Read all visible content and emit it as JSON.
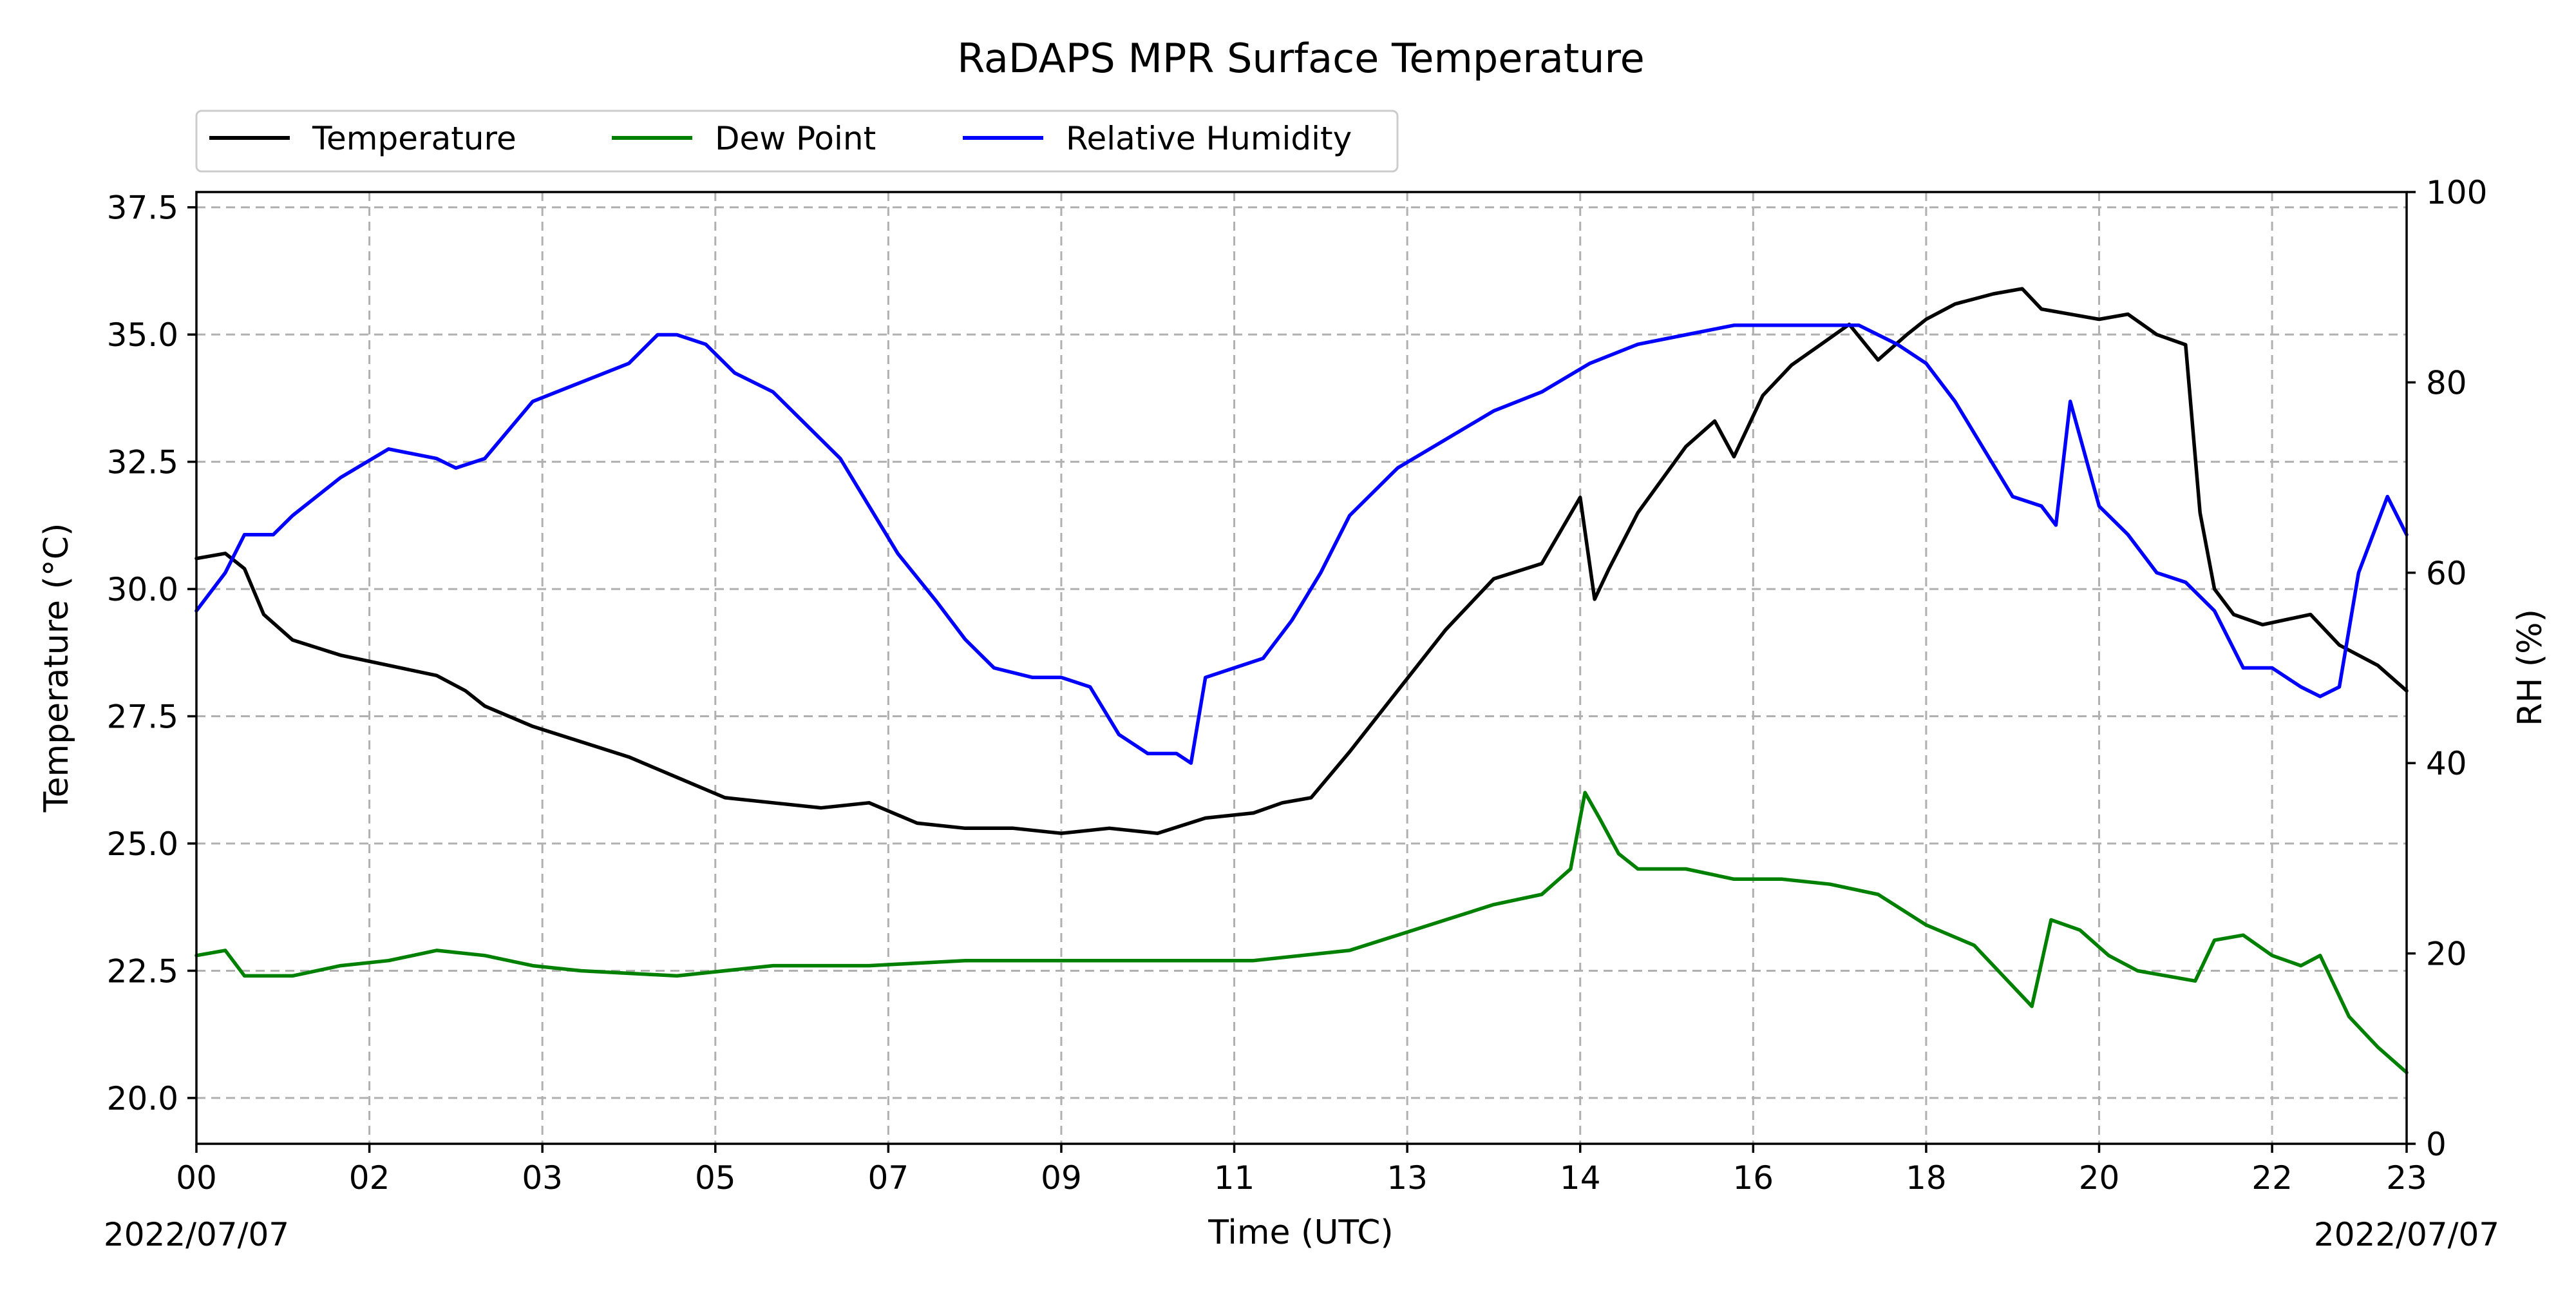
{
  "chart_data": {
    "type": "line",
    "title": "RaDAPS MPR Surface Temperature",
    "xlabel": "Time (UTC)",
    "ylabel": "Temperature ( $^\\circ$C)",
    "ylabel_display": "Temperature (°C)",
    "y2label": "RH (%)",
    "date_left": "2022/07/07",
    "date_right": "2022/07/07",
    "xlim": [
      0,
      23
    ],
    "ylim": [
      19.1,
      37.8
    ],
    "y2lim": [
      0,
      100
    ],
    "grid": true,
    "legend_position": "top-left, above plot",
    "x_ticks": [
      {
        "value": 0,
        "label": "00"
      },
      {
        "value": 1.8,
        "label": "02"
      },
      {
        "value": 3.6,
        "label": "03"
      },
      {
        "value": 5.4,
        "label": "05"
      },
      {
        "value": 7.2,
        "label": "07"
      },
      {
        "value": 9.0,
        "label": "09"
      },
      {
        "value": 10.8,
        "label": "11"
      },
      {
        "value": 12.6,
        "label": "13"
      },
      {
        "value": 14.4,
        "label": "14"
      },
      {
        "value": 16.2,
        "label": "16"
      },
      {
        "value": 18.0,
        "label": "18"
      },
      {
        "value": 19.8,
        "label": "20"
      },
      {
        "value": 21.6,
        "label": "22"
      },
      {
        "value": 23.0,
        "label": "23"
      }
    ],
    "y_ticks": [
      {
        "value": 20.0,
        "label": "20.0"
      },
      {
        "value": 22.5,
        "label": "22.5"
      },
      {
        "value": 25.0,
        "label": "25.0"
      },
      {
        "value": 27.5,
        "label": "27.5"
      },
      {
        "value": 30.0,
        "label": "30.0"
      },
      {
        "value": 32.5,
        "label": "32.5"
      },
      {
        "value": 35.0,
        "label": "35.0"
      },
      {
        "value": 37.5,
        "label": "37.5"
      }
    ],
    "y2_ticks": [
      {
        "value": 0,
        "label": "0"
      },
      {
        "value": 20,
        "label": "20"
      },
      {
        "value": 40,
        "label": "40"
      },
      {
        "value": 60,
        "label": "60"
      },
      {
        "value": 80,
        "label": "80"
      },
      {
        "value": 100,
        "label": "100"
      }
    ],
    "series": [
      {
        "name": "Temperature",
        "color": "#000000",
        "axis": "left",
        "x": [
          0,
          0.3,
          0.5,
          0.7,
          1.0,
          1.5,
          2.0,
          2.5,
          2.8,
          3.0,
          3.5,
          4.0,
          4.5,
          5.0,
          5.5,
          6.0,
          6.5,
          7.0,
          7.5,
          8.0,
          8.5,
          9.0,
          9.5,
          10.0,
          10.5,
          11.0,
          11.3,
          11.6,
          12.0,
          12.5,
          13.0,
          13.5,
          14.0,
          14.4,
          14.55,
          14.7,
          15.0,
          15.5,
          15.8,
          16.0,
          16.3,
          16.6,
          16.9,
          17.2,
          17.5,
          17.8,
          18.0,
          18.3,
          18.7,
          19.0,
          19.2,
          19.5,
          19.8,
          20.1,
          20.4,
          20.7,
          20.85,
          21.0,
          21.2,
          21.5,
          22.0,
          22.3,
          22.7,
          23.0
        ],
        "values": [
          30.6,
          30.7,
          30.4,
          29.5,
          29.0,
          28.7,
          28.5,
          28.3,
          28.0,
          27.7,
          27.3,
          27.0,
          26.7,
          26.3,
          25.9,
          25.8,
          25.7,
          25.8,
          25.4,
          25.3,
          25.3,
          25.2,
          25.3,
          25.2,
          25.5,
          25.6,
          25.8,
          25.9,
          26.8,
          28.0,
          29.2,
          30.2,
          30.5,
          31.8,
          29.8,
          30.4,
          31.5,
          32.8,
          33.3,
          32.6,
          33.8,
          34.4,
          34.8,
          35.2,
          34.5,
          35.0,
          35.3,
          35.6,
          35.8,
          35.9,
          35.5,
          35.4,
          35.3,
          35.4,
          35.0,
          34.8,
          31.5,
          30.0,
          29.5,
          29.3,
          29.5,
          28.9,
          28.5,
          28.0
        ]
      },
      {
        "name": "Dew Point",
        "color": "#008000",
        "axis": "left",
        "x": [
          0,
          0.3,
          0.5,
          1.0,
          1.5,
          2.0,
          2.5,
          3.0,
          3.5,
          4.0,
          5.0,
          6.0,
          7.0,
          8.0,
          9.0,
          10.0,
          11.0,
          12.0,
          12.5,
          13.0,
          13.5,
          14.0,
          14.3,
          14.45,
          14.6,
          14.8,
          15.0,
          15.5,
          16.0,
          16.5,
          17.0,
          17.5,
          18.0,
          18.5,
          18.8,
          19.1,
          19.3,
          19.6,
          19.9,
          20.2,
          20.5,
          20.8,
          21.0,
          21.3,
          21.6,
          21.9,
          22.1,
          22.4,
          22.7,
          23.0
        ],
        "values": [
          22.8,
          22.9,
          22.4,
          22.4,
          22.6,
          22.7,
          22.9,
          22.8,
          22.6,
          22.5,
          22.4,
          22.6,
          22.6,
          22.7,
          22.7,
          22.7,
          22.7,
          22.9,
          23.2,
          23.5,
          23.8,
          24.0,
          24.5,
          26.0,
          25.5,
          24.8,
          24.5,
          24.5,
          24.3,
          24.3,
          24.2,
          24.0,
          23.4,
          23.0,
          22.4,
          21.8,
          23.5,
          23.3,
          22.8,
          22.5,
          22.4,
          22.3,
          23.1,
          23.2,
          22.8,
          22.6,
          22.8,
          21.6,
          21.0,
          20.5
        ]
      },
      {
        "name": "Relative Humidity",
        "color": "#0000ff",
        "axis": "right",
        "x": [
          0,
          0.3,
          0.5,
          0.8,
          1.0,
          1.5,
          2.0,
          2.5,
          2.7,
          3.0,
          3.5,
          4.0,
          4.5,
          4.8,
          5.0,
          5.3,
          5.6,
          6.0,
          6.3,
          6.7,
          7.0,
          7.3,
          7.7,
          8.0,
          8.3,
          8.7,
          9.0,
          9.3,
          9.6,
          9.9,
          10.2,
          10.35,
          10.5,
          10.8,
          11.1,
          11.4,
          11.7,
          12.0,
          12.5,
          13.0,
          13.5,
          14.0,
          14.5,
          15.0,
          15.5,
          16.0,
          16.5,
          17.0,
          17.3,
          17.7,
          18.0,
          18.3,
          18.6,
          18.9,
          19.2,
          19.35,
          19.5,
          19.8,
          20.1,
          20.4,
          20.7,
          21.0,
          21.3,
          21.6,
          21.9,
          22.1,
          22.3,
          22.5,
          22.8,
          23.0
        ],
        "values": [
          56,
          60,
          64,
          64,
          66,
          70,
          73,
          72,
          71,
          72,
          78,
          80,
          82,
          85,
          85,
          84,
          81,
          79,
          76,
          72,
          67,
          62,
          57,
          53,
          50,
          49,
          49,
          48,
          43,
          41,
          41,
          40,
          49,
          50,
          51,
          55,
          60,
          66,
          71,
          74,
          77,
          79,
          82,
          84,
          85,
          86,
          86,
          86,
          86,
          84,
          82,
          78,
          73,
          68,
          67,
          65,
          78,
          67,
          64,
          60,
          59,
          56,
          50,
          50,
          48,
          47,
          48,
          60,
          68,
          64
        ]
      }
    ]
  }
}
